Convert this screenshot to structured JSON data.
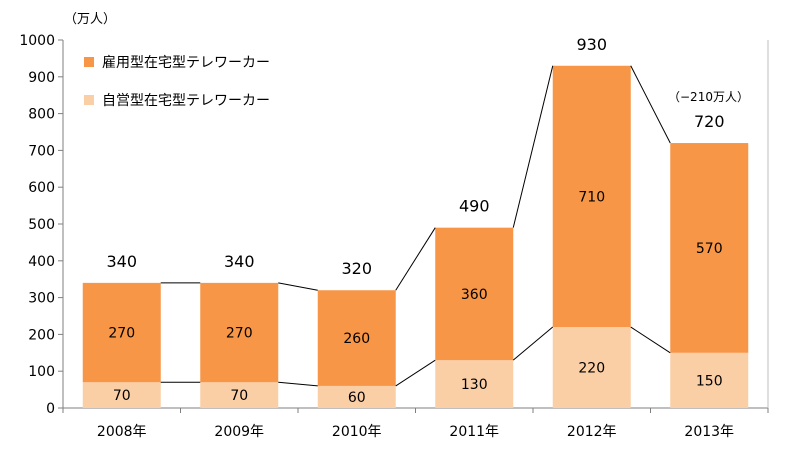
{
  "chart_data": {
    "type": "bar",
    "stacked": true,
    "unit": "（万人）",
    "categories": [
      "2008年",
      "2009年",
      "2010年",
      "2011年",
      "2012年",
      "2013年"
    ],
    "series": [
      {
        "name": "自営型在宅型テレワーカー",
        "values": [
          70,
          70,
          60,
          130,
          220,
          150
        ],
        "color": "#fbcfa6"
      },
      {
        "name": "雇用型在宅型テレワーカー",
        "values": [
          270,
          270,
          260,
          360,
          710,
          570
        ],
        "color": "#f79646"
      }
    ],
    "totals": [
      340,
      340,
      320,
      490,
      930,
      720
    ],
    "ylim": [
      0,
      1000
    ],
    "yticks": [
      0,
      100,
      200,
      300,
      400,
      500,
      600,
      700,
      800,
      900,
      1000
    ],
    "grid": false,
    "legend_position": "top-left",
    "annotations": [
      "（−210万人）"
    ]
  }
}
